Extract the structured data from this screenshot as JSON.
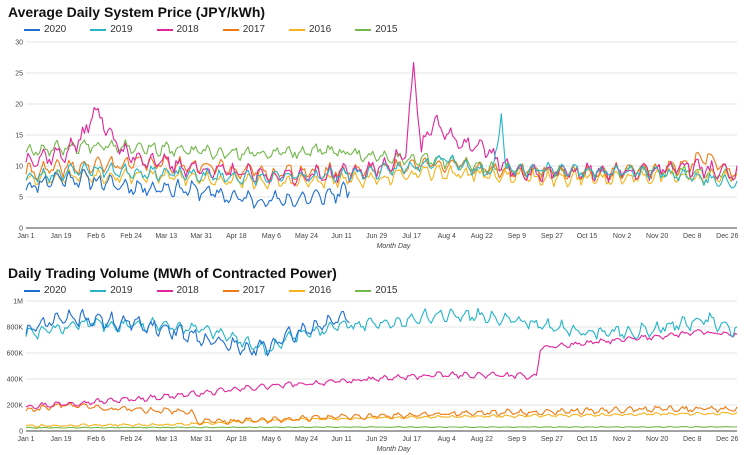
{
  "colors": {
    "2020": "#1f6fd1",
    "2019": "#25b5c7",
    "2018": "#e0259b",
    "2017": "#f07a12",
    "2016": "#f5b41e",
    "2015": "#72b84a",
    "grid": "#e6e6e6",
    "axis": "#444444"
  },
  "chart_data": [
    {
      "type": "line",
      "title": "Average Daily System Price (JPY/kWh)",
      "xlabel": "Month Day",
      "ylabel": "",
      "ylim": [
        0,
        30
      ],
      "yticks": [
        0,
        5,
        10,
        15,
        20,
        25,
        30
      ],
      "ytick_labels": [
        "0",
        "5",
        "10",
        "15",
        "20",
        "25",
        "30"
      ],
      "xlim": [
        0,
        365
      ],
      "xticks": [
        0,
        18,
        36,
        54,
        72,
        90,
        108,
        126,
        144,
        162,
        180,
        198,
        216,
        234,
        252,
        270,
        288,
        306,
        324,
        342,
        360
      ],
      "xtick_labels": [
        "Jan 1",
        "Jan 19",
        "Feb 6",
        "Feb 24",
        "Mar 13",
        "Mar 31",
        "Apr 18",
        "May 6",
        "May 24",
        "Jun 11",
        "Jun 29",
        "Jul 17",
        "Aug 4",
        "Aug 22",
        "Sep 9",
        "Sep 27",
        "Oct 15",
        "Nov 2",
        "Nov 20",
        "Dec 8",
        "Dec 26"
      ],
      "legend": [
        "2020",
        "2019",
        "2018",
        "2017",
        "2016",
        "2015"
      ],
      "series": [
        {
          "name": "2020",
          "days": [
            0,
            166
          ],
          "anchors": [
            [
              0,
              6.5
            ],
            [
              15,
              8.0
            ],
            [
              30,
              8.0
            ],
            [
              45,
              7.0
            ],
            [
              60,
              6.5
            ],
            [
              75,
              6.5
            ],
            [
              90,
              6.0
            ],
            [
              105,
              5.0
            ],
            [
              120,
              4.5
            ],
            [
              135,
              4.5
            ],
            [
              150,
              5.0
            ],
            [
              158,
              5.5
            ],
            [
              166,
              6.0
            ]
          ],
          "noise": 1.3,
          "seed": 11
        },
        {
          "name": "2019",
          "days": [
            0,
            365
          ],
          "anchors": [
            [
              0,
              8.0
            ],
            [
              30,
              9.5
            ],
            [
              60,
              9.0
            ],
            [
              90,
              8.5
            ],
            [
              120,
              8.0
            ],
            [
              150,
              8.5
            ],
            [
              180,
              9.0
            ],
            [
              200,
              10.0
            ],
            [
              215,
              11.5
            ],
            [
              225,
              10.0
            ],
            [
              240,
              9.0
            ],
            [
              244,
              18.5
            ],
            [
              246,
              9.5
            ],
            [
              270,
              9.5
            ],
            [
              300,
              9.0
            ],
            [
              330,
              9.0
            ],
            [
              365,
              7.0
            ]
          ],
          "noise": 1.0,
          "seed": 23
        },
        {
          "name": "2018",
          "days": [
            0,
            365
          ],
          "anchors": [
            [
              0,
              11.0
            ],
            [
              20,
              12.0
            ],
            [
              30,
              15.0
            ],
            [
              35,
              19.0
            ],
            [
              40,
              17.0
            ],
            [
              50,
              12.0
            ],
            [
              70,
              10.5
            ],
            [
              90,
              9.5
            ],
            [
              120,
              8.5
            ],
            [
              150,
              8.5
            ],
            [
              180,
              9.5
            ],
            [
              195,
              12.0
            ],
            [
              199,
              26.0
            ],
            [
              203,
              13.0
            ],
            [
              210,
              17.0
            ],
            [
              220,
              14.0
            ],
            [
              235,
              13.0
            ],
            [
              250,
              9.0
            ],
            [
              280,
              9.0
            ],
            [
              310,
              9.0
            ],
            [
              340,
              10.0
            ],
            [
              365,
              8.5
            ]
          ],
          "noise": 1.4,
          "seed": 37
        },
        {
          "name": "2017",
          "days": [
            0,
            365
          ],
          "anchors": [
            [
              0,
              9.0
            ],
            [
              30,
              10.0
            ],
            [
              60,
              10.5
            ],
            [
              90,
              10.0
            ],
            [
              120,
              9.0
            ],
            [
              150,
              9.0
            ],
            [
              180,
              9.5
            ],
            [
              210,
              10.5
            ],
            [
              240,
              9.5
            ],
            [
              270,
              9.0
            ],
            [
              300,
              9.0
            ],
            [
              330,
              9.5
            ],
            [
              350,
              11.5
            ],
            [
              365,
              9.0
            ]
          ],
          "noise": 1.2,
          "seed": 41
        },
        {
          "name": "2016",
          "days": [
            0,
            365
          ],
          "anchors": [
            [
              0,
              8.0
            ],
            [
              30,
              8.5
            ],
            [
              60,
              8.5
            ],
            [
              90,
              8.0
            ],
            [
              120,
              7.5
            ],
            [
              150,
              7.5
            ],
            [
              180,
              8.0
            ],
            [
              210,
              9.0
            ],
            [
              240,
              8.5
            ],
            [
              270,
              8.0
            ],
            [
              300,
              8.0
            ],
            [
              330,
              8.5
            ],
            [
              365,
              8.0
            ]
          ],
          "noise": 1.1,
          "seed": 53
        },
        {
          "name": "2015",
          "days": [
            0,
            365
          ],
          "anchors": [
            [
              0,
              12.5
            ],
            [
              20,
              13.0
            ],
            [
              40,
              13.5
            ],
            [
              60,
              13.0
            ],
            [
              80,
              12.5
            ],
            [
              100,
              12.0
            ],
            [
              120,
              12.0
            ],
            [
              150,
              12.5
            ],
            [
              180,
              11.5
            ],
            [
              210,
              11.0
            ],
            [
              240,
              9.5
            ],
            [
              270,
              9.0
            ],
            [
              300,
              9.0
            ],
            [
              330,
              9.5
            ],
            [
              365,
              8.5
            ]
          ],
          "noise": 1.0,
          "seed": 67
        }
      ]
    },
    {
      "type": "line",
      "title": "Daily Trading Volume (MWh of Contracted Power)",
      "xlabel": "Month Day",
      "ylabel": "",
      "ylim": [
        0,
        1000000
      ],
      "yticks": [
        0,
        200000,
        400000,
        600000,
        800000,
        1000000
      ],
      "ytick_labels": [
        "0",
        "200K",
        "400K",
        "600K",
        "800K",
        "1M"
      ],
      "xlim": [
        0,
        365
      ],
      "xticks": [
        0,
        18,
        36,
        54,
        72,
        90,
        108,
        126,
        144,
        162,
        180,
        198,
        216,
        234,
        252,
        270,
        288,
        306,
        324,
        342,
        360
      ],
      "xtick_labels": [
        "Jan 1",
        "Jan 19",
        "Feb 6",
        "Feb 24",
        "Mar 13",
        "Mar 31",
        "Apr 18",
        "May 6",
        "May 24",
        "Jun 11",
        "Jun 29",
        "Jul 17",
        "Aug 4",
        "Aug 22",
        "Sep 9",
        "Sep 27",
        "Oct 15",
        "Nov 2",
        "Nov 20",
        "Dec 8",
        "Dec 26"
      ],
      "legend": [
        "2020",
        "2019",
        "2018",
        "2017",
        "2016",
        "2015"
      ],
      "series": [
        {
          "name": "2020",
          "days": [
            0,
            166
          ],
          "anchors": [
            [
              0,
              760000
            ],
            [
              15,
              860000
            ],
            [
              30,
              870000
            ],
            [
              45,
              840000
            ],
            [
              60,
              820000
            ],
            [
              80,
              760000
            ],
            [
              100,
              680000
            ],
            [
              115,
              620000
            ],
            [
              125,
              660000
            ],
            [
              140,
              760000
            ],
            [
              155,
              840000
            ],
            [
              166,
              860000
            ]
          ],
          "noise": 60000,
          "seed": 71
        },
        {
          "name": "2019",
          "days": [
            0,
            365
          ],
          "anchors": [
            [
              0,
              740000
            ],
            [
              30,
              830000
            ],
            [
              60,
              820000
            ],
            [
              90,
              780000
            ],
            [
              110,
              700000
            ],
            [
              125,
              620000
            ],
            [
              140,
              750000
            ],
            [
              165,
              810000
            ],
            [
              190,
              840000
            ],
            [
              215,
              900000
            ],
            [
              240,
              880000
            ],
            [
              265,
              820000
            ],
            [
              285,
              760000
            ],
            [
              310,
              760000
            ],
            [
              335,
              820000
            ],
            [
              350,
              860000
            ],
            [
              365,
              760000
            ]
          ],
          "noise": 50000,
          "seed": 83
        },
        {
          "name": "2018",
          "days": [
            0,
            365
          ],
          "anchors": [
            [
              0,
              190000
            ],
            [
              30,
              220000
            ],
            [
              60,
              250000
            ],
            [
              90,
              290000
            ],
            [
              120,
              340000
            ],
            [
              150,
              370000
            ],
            [
              180,
              400000
            ],
            [
              210,
              430000
            ],
            [
              240,
              430000
            ],
            [
              262,
              420000
            ],
            [
              264,
              640000
            ],
            [
              290,
              680000
            ],
            [
              320,
              720000
            ],
            [
              345,
              760000
            ],
            [
              365,
              740000
            ]
          ],
          "noise": 20000,
          "seed": 97
        },
        {
          "name": "2017",
          "days": [
            0,
            365
          ],
          "anchors": [
            [
              0,
              160000
            ],
            [
              20,
              200000
            ],
            [
              40,
              170000
            ],
            [
              60,
              160000
            ],
            [
              85,
              150000
            ],
            [
              88,
              70000
            ],
            [
              120,
              85000
            ],
            [
              150,
              100000
            ],
            [
              180,
              115000
            ],
            [
              210,
              130000
            ],
            [
              240,
              140000
            ],
            [
              270,
              150000
            ],
            [
              300,
              160000
            ],
            [
              330,
              170000
            ],
            [
              365,
              165000
            ]
          ],
          "noise": 22000,
          "seed": 103
        },
        {
          "name": "2016",
          "days": [
            0,
            365
          ],
          "anchors": [
            [
              0,
              40000
            ],
            [
              40,
              45000
            ],
            [
              80,
              50000
            ],
            [
              120,
              80000
            ],
            [
              160,
              95000
            ],
            [
              200,
              105000
            ],
            [
              240,
              115000
            ],
            [
              280,
              120000
            ],
            [
              320,
              130000
            ],
            [
              365,
              135000
            ]
          ],
          "noise": 10000,
          "seed": 113
        },
        {
          "name": "2015",
          "days": [
            0,
            365
          ],
          "anchors": [
            [
              0,
              25000
            ],
            [
              90,
              28000
            ],
            [
              180,
              30000
            ],
            [
              270,
              30000
            ],
            [
              365,
              32000
            ]
          ],
          "noise": 3000,
          "seed": 127
        }
      ]
    }
  ]
}
